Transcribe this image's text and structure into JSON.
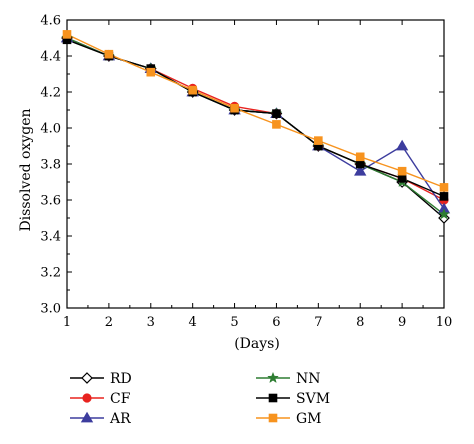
{
  "chart_data": {
    "type": "line",
    "xlabel": "(Days)",
    "ylabel": "Dissolved oxygen",
    "x": [
      1,
      2,
      3,
      4,
      5,
      6,
      7,
      8,
      9,
      10
    ],
    "xlim": [
      1,
      10
    ],
    "ylim": [
      3.0,
      4.6
    ],
    "xticks": [
      "1",
      "2",
      "3",
      "4",
      "5",
      "6",
      "7",
      "8",
      "9",
      "10"
    ],
    "yticks": [
      "3.0",
      "3.2",
      "3.4",
      "3.6",
      "3.8",
      "4.0",
      "4.2",
      "4.4",
      "4.6"
    ],
    "grid": false,
    "legend_position": "bottom",
    "series": [
      {
        "name": "RD",
        "color": "#000000",
        "marker": "diamond-open",
        "values": [
          4.5,
          4.4,
          4.33,
          4.2,
          4.1,
          4.08,
          3.9,
          3.8,
          3.7,
          3.5
        ]
      },
      {
        "name": "CF",
        "color": "#e8231f",
        "marker": "circle",
        "values": [
          4.5,
          4.4,
          4.33,
          4.22,
          4.12,
          4.08,
          3.9,
          3.8,
          3.72,
          3.6
        ]
      },
      {
        "name": "AR",
        "color": "#3d3d9e",
        "marker": "triangle",
        "values": [
          4.5,
          4.4,
          4.33,
          4.2,
          4.1,
          4.08,
          3.9,
          3.76,
          3.9,
          3.55
        ]
      },
      {
        "name": "NN",
        "color": "#2e7d32",
        "marker": "star",
        "values": [
          4.5,
          4.4,
          4.33,
          4.2,
          4.1,
          4.08,
          3.9,
          3.8,
          3.7,
          3.52
        ]
      },
      {
        "name": "SVM",
        "color": "#000000",
        "marker": "square",
        "values": [
          4.49,
          4.4,
          4.33,
          4.2,
          4.1,
          4.08,
          3.9,
          3.8,
          3.72,
          3.62
        ]
      },
      {
        "name": "GM",
        "color": "#f7931e",
        "marker": "square",
        "values": [
          4.52,
          4.41,
          4.31,
          4.21,
          4.11,
          4.02,
          3.93,
          3.84,
          3.76,
          3.67
        ]
      }
    ]
  }
}
